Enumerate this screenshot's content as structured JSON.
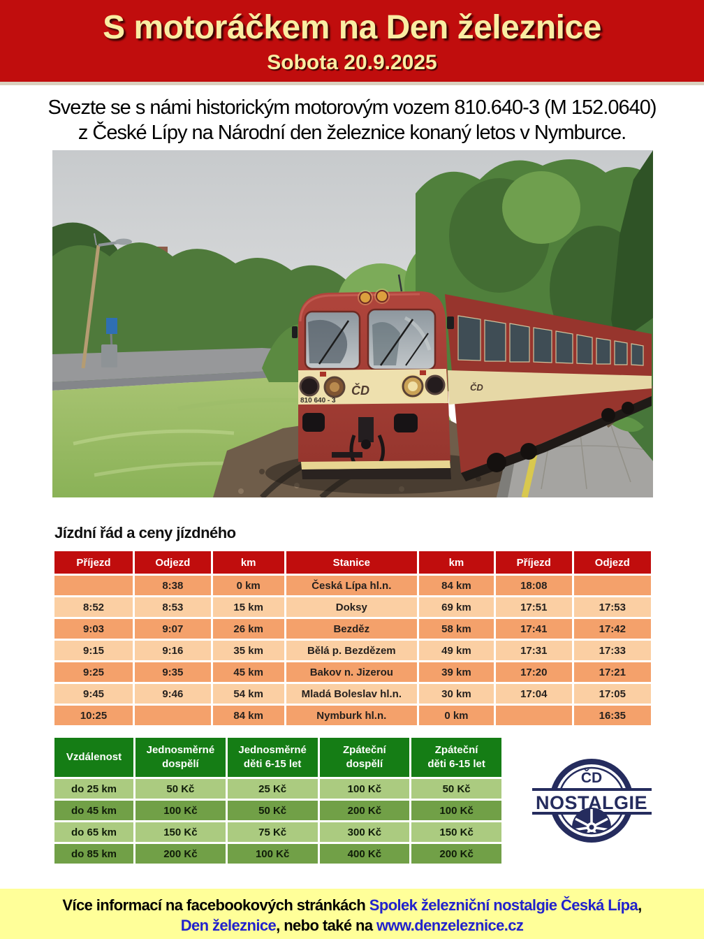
{
  "header": {
    "title": "S motoráčkem na Den železnice",
    "date": "Sobota 20.9.2025"
  },
  "intro": {
    "line1": "Svezte se s námi historickým motorovým vozem 810.640-3 (M 152.0640)",
    "line2": "z České Lípy na Národní den železnice konaný letos v Nymburce."
  },
  "photo": {
    "train_number": "810 640 - 3",
    "front_logo": "ČD",
    "side_logo": "ČD"
  },
  "schedule": {
    "heading": "Jízdní řád a ceny jízdného",
    "columns": [
      "Příjezd",
      "Odjezd",
      "km",
      "Stanice",
      "km",
      "Příjezd",
      "Odjezd"
    ],
    "rows": [
      [
        "",
        "8:38",
        "0 km",
        "Česká Lípa hl.n.",
        "84 km",
        "18:08",
        ""
      ],
      [
        "8:52",
        "8:53",
        "15 km",
        "Doksy",
        "69 km",
        "17:51",
        "17:53"
      ],
      [
        "9:03",
        "9:07",
        "26 km",
        "Bezděz",
        "58 km",
        "17:41",
        "17:42"
      ],
      [
        "9:15",
        "9:16",
        "35 km",
        "Bělá p. Bezdězem",
        "49 km",
        "17:31",
        "17:33"
      ],
      [
        "9:25",
        "9:35",
        "45 km",
        "Bakov n. Jizerou",
        "39 km",
        "17:20",
        "17:21"
      ],
      [
        "9:45",
        "9:46",
        "54 km",
        "Mladá Boleslav hl.n.",
        "30 km",
        "17:04",
        "17:05"
      ],
      [
        "10:25",
        "",
        "84 km",
        "Nymburk hl.n.",
        "0 km",
        "",
        "16:35"
      ]
    ]
  },
  "prices": {
    "columns": [
      "Vzdálenost",
      "Jednosměrné\ndospělí",
      "Jednosměrné\nděti 6-15 let",
      "Zpáteční\ndospělí",
      "Zpáteční\nděti 6-15 let"
    ],
    "rows": [
      [
        "do 25 km",
        "50 Kč",
        "25 Kč",
        "100 Kč",
        "50 Kč"
      ],
      [
        "do 45 km",
        "100 Kč",
        "50 Kč",
        "200 Kč",
        "100 Kč"
      ],
      [
        "do 65 km",
        "150 Kč",
        "75 Kč",
        "300 Kč",
        "150 Kč"
      ],
      [
        "do 85 km",
        "200 Kč",
        "100 Kč",
        "400 Kč",
        "200 Kč"
      ]
    ]
  },
  "logo": {
    "top": "ČD",
    "band": "NOSTALGIE"
  },
  "footer": {
    "line1_text": "Více informací na facebookových stránkách ",
    "line1_link": "Spolek železniční nostalgie Česká Lípa",
    "line1_suffix": ",",
    "line2_link1": "Den železnice",
    "line2_text": ", nebo také na ",
    "line2_link2": "www.denzeleznice.cz"
  },
  "colors": {
    "header_red": "#c00d0d",
    "title_cream": "#f9eda3",
    "table_red": "#c00d0d",
    "row_dark": "#f4a16b",
    "row_light": "#fbcfa3",
    "table_green": "#157d15",
    "green_light": "#abcb80",
    "green_dark": "#71a047",
    "footer_yellow": "#ffff99",
    "link_blue": "#2222cc",
    "logo_navy": "#252c5e"
  }
}
